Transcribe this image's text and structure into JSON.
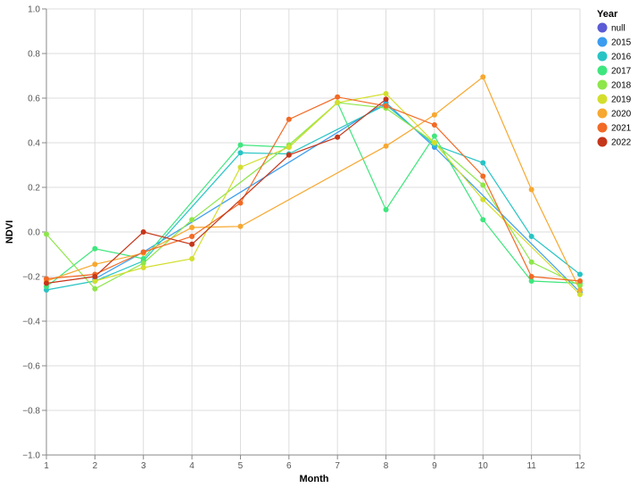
{
  "chart_data": {
    "type": "line",
    "xlabel": "Month",
    "ylabel": "NDVI",
    "x_ticks": [
      1,
      2,
      3,
      4,
      5,
      6,
      7,
      8,
      9,
      10,
      11,
      12
    ],
    "y_ticks": [
      -1.0,
      -0.8,
      -0.6,
      -0.4,
      -0.2,
      0.0,
      0.2,
      0.4,
      0.6,
      0.8,
      1.0
    ],
    "xlim": [
      1,
      12
    ],
    "ylim": [
      -1.0,
      1.0
    ],
    "grid": true,
    "legend_title": "Year",
    "legend_position": "top-right",
    "series": [
      {
        "name": "null",
        "color": "#5b5bd6",
        "points": []
      },
      {
        "name": "2015",
        "color": "#3b9cf0",
        "points": [
          [
            2,
            -0.21
          ],
          [
            3,
            -0.09
          ],
          [
            8,
            0.58
          ],
          [
            9,
            0.38
          ],
          [
            12,
            -0.27
          ]
        ]
      },
      {
        "name": "2016",
        "color": "#27c4c4",
        "points": [
          [
            1,
            -0.26
          ],
          [
            2,
            -0.22
          ],
          [
            3,
            -0.13
          ],
          [
            5,
            0.355
          ],
          [
            6,
            0.35
          ],
          [
            8,
            0.57
          ],
          [
            9,
            0.39
          ],
          [
            10,
            0.31
          ],
          [
            11,
            -0.02
          ],
          [
            12,
            -0.19
          ]
        ]
      },
      {
        "name": "2017",
        "color": "#3fe67d",
        "points": [
          [
            1,
            -0.245
          ],
          [
            2,
            -0.075
          ],
          [
            3,
            -0.12
          ],
          [
            5,
            0.39
          ],
          [
            6,
            0.38
          ],
          [
            7,
            0.58
          ],
          [
            8,
            0.1
          ],
          [
            9,
            0.43
          ],
          [
            10,
            0.055
          ],
          [
            11,
            -0.22
          ],
          [
            12,
            -0.23
          ]
        ]
      },
      {
        "name": "2018",
        "color": "#8de64a",
        "points": [
          [
            1,
            -0.01
          ],
          [
            2,
            -0.255
          ],
          [
            3,
            -0.14
          ],
          [
            4,
            0.055
          ],
          [
            6,
            0.39
          ],
          [
            7,
            0.58
          ],
          [
            8,
            0.555
          ],
          [
            9,
            0.4
          ],
          [
            10,
            0.21
          ],
          [
            11,
            -0.135
          ],
          [
            12,
            -0.24
          ]
        ]
      },
      {
        "name": "2019",
        "color": "#d3de2c",
        "points": [
          [
            2,
            -0.22
          ],
          [
            3,
            -0.16
          ],
          [
            4,
            -0.12
          ],
          [
            5,
            0.29
          ],
          [
            6,
            0.38
          ],
          [
            7,
            0.58
          ],
          [
            8,
            0.62
          ],
          [
            9,
            0.4
          ],
          [
            10,
            0.145
          ],
          [
            12,
            -0.28
          ]
        ]
      },
      {
        "name": "2020",
        "color": "#f7a830",
        "points": [
          [
            1,
            -0.22
          ],
          [
            2,
            -0.145
          ],
          [
            3,
            -0.095
          ],
          [
            4,
            0.02
          ],
          [
            5,
            0.025
          ],
          [
            8,
            0.385
          ],
          [
            9,
            0.525
          ],
          [
            10,
            0.695
          ],
          [
            11,
            0.19
          ],
          [
            12,
            -0.26
          ]
        ]
      },
      {
        "name": "2021",
        "color": "#f26a25",
        "points": [
          [
            1,
            -0.21
          ],
          [
            2,
            -0.19
          ],
          [
            3,
            -0.09
          ],
          [
            4,
            -0.02
          ],
          [
            5,
            0.13
          ],
          [
            6,
            0.505
          ],
          [
            7,
            0.605
          ],
          [
            8,
            0.565
          ],
          [
            9,
            0.48
          ],
          [
            10,
            0.25
          ],
          [
            11,
            -0.2
          ],
          [
            12,
            -0.22
          ]
        ]
      },
      {
        "name": "2022",
        "color": "#c5361a",
        "points": [
          [
            1,
            -0.23
          ],
          [
            2,
            -0.2
          ],
          [
            3,
            0.0
          ],
          [
            4,
            -0.055
          ],
          [
            6,
            0.345
          ],
          [
            7,
            0.425
          ],
          [
            8,
            0.595
          ]
        ]
      }
    ]
  }
}
